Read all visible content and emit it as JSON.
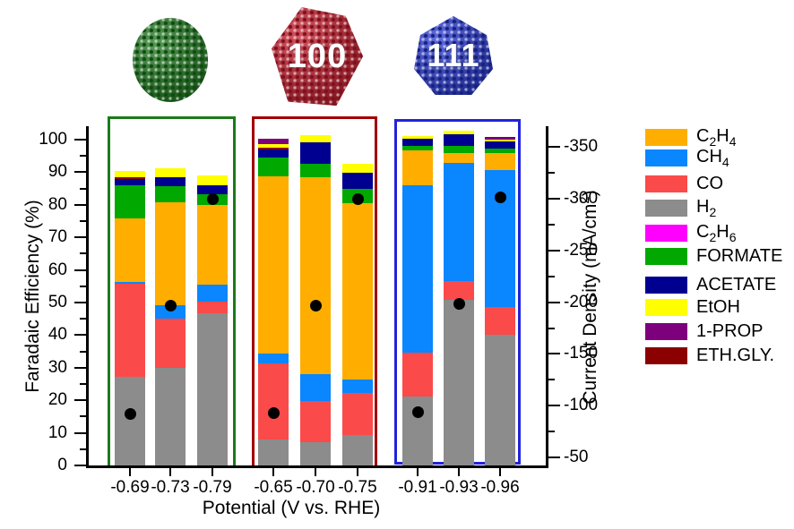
{
  "figure": {
    "particles": [
      {
        "name": "green-sphere-nanoparticle",
        "label": "",
        "base_color": "#217821",
        "dark_color": "#0c4d0c"
      },
      {
        "name": "red-cube-nanoparticle-100",
        "label": "100",
        "base_color": "#c31b2b",
        "dark_color": "#7e0f1b"
      },
      {
        "name": "blue-octahedron-nanoparticle-111",
        "label": "111",
        "base_color": "#2a3bd4",
        "dark_color": "#16217e"
      }
    ]
  },
  "chart_data": {
    "type": "bar",
    "stacked": true,
    "title": "",
    "xlabel": "Potential (V vs. RHE)",
    "ylabel_left": "Faradaic Efficiency (%)",
    "ylabel_right": "Current Density (mA/cm^2)",
    "left_axis": {
      "min": 0,
      "max": 100,
      "major_step": 10,
      "minor_step": 5
    },
    "right_axis": {
      "min": -350,
      "max": -50,
      "major_step": 50,
      "minor_step": 25
    },
    "grid": false,
    "legend_position": "right",
    "legend": [
      {
        "key": "C2H4",
        "label": "C_2H_4",
        "color": "#FFAE00"
      },
      {
        "key": "CH4",
        "label": "CH_4",
        "color": "#0A86FF"
      },
      {
        "key": "CO",
        "label": "CO",
        "color": "#FB4A4A"
      },
      {
        "key": "H2",
        "label": "H_2",
        "color": "#8C8C8C"
      },
      {
        "key": "C2H6",
        "label": "C_2H_6",
        "color": "#FF00FF"
      },
      {
        "key": "FORMATE",
        "label": "FORMATE",
        "color": "#00A800"
      },
      {
        "key": "ACETATE",
        "label": "ACETATE",
        "color": "#000090"
      },
      {
        "key": "EtOH",
        "label": "EtOH",
        "color": "#FFFF00"
      },
      {
        "key": "1-PROP",
        "label": "1-PROP",
        "color": "#7D007D"
      },
      {
        "key": "ETH.GLY",
        "label": "ETH.GLY.",
        "color": "#8B0000"
      }
    ],
    "groups": [
      {
        "name": "sphere",
        "box_color": "#1B7A1B",
        "bars": [
          {
            "x": "-0.69",
            "current_density": -92,
            "segments": [
              [
                "H2",
                27.5
              ],
              [
                "CO",
                28.5
              ],
              [
                "CH4",
                0.7
              ],
              [
                "C2H4",
                19.5
              ],
              [
                "FORMATE",
                10.2
              ],
              [
                "ACETATE",
                1.7
              ],
              [
                "ETH.GLY",
                0.6
              ],
              [
                "EtOH",
                2.0
              ]
            ]
          },
          {
            "x": "-0.73",
            "current_density": -197,
            "segments": [
              [
                "H2",
                30.2
              ],
              [
                "CO",
                15.1
              ],
              [
                "CH4",
                4.2
              ],
              [
                "C2H4",
                31.5
              ],
              [
                "FORMATE",
                5.1
              ],
              [
                "ACETATE",
                2.6
              ],
              [
                "EtOH",
                2.9
              ]
            ]
          },
          {
            "x": "-0.79",
            "current_density": -300,
            "segments": [
              [
                "H2",
                47.0
              ],
              [
                "CO",
                3.5
              ],
              [
                "CH4",
                5.4
              ],
              [
                "C2H4",
                24.2
              ],
              [
                "FORMATE",
                3.5
              ],
              [
                "ACETATE",
                2.7
              ],
              [
                "EtOH",
                3.0
              ]
            ]
          }
        ]
      },
      {
        "name": "100",
        "box_color": "#A00000",
        "bars": [
          {
            "x": "-0.65",
            "current_density": -93,
            "segments": [
              [
                "H2",
                8.2
              ],
              [
                "CO",
                23.4
              ],
              [
                "CH4",
                2.9
              ],
              [
                "C2H4",
                54.5
              ],
              [
                "FORMATE",
                5.8
              ],
              [
                "ACETATE",
                2.5
              ],
              [
                "ETH.GLY",
                0.5
              ],
              [
                "EtOH",
                1.1
              ],
              [
                "1-PROP",
                1.6
              ]
            ]
          },
          {
            "x": "-0.70",
            "current_density": -197,
            "segments": [
              [
                "H2",
                7.4
              ],
              [
                "CO",
                12.7
              ],
              [
                "CH4",
                8.3
              ],
              [
                "C2H4",
                60.4
              ],
              [
                "FORMATE",
                4.0
              ],
              [
                "ACETATE",
                6.6
              ],
              [
                "EtOH",
                2.2
              ]
            ]
          },
          {
            "x": "-0.75",
            "current_density": -300,
            "segments": [
              [
                "H2",
                9.6
              ],
              [
                "CO",
                12.8
              ],
              [
                "CH4",
                4.2
              ],
              [
                "C2H4",
                54.3
              ],
              [
                "FORMATE",
                4.3
              ],
              [
                "ACETATE",
                5.0
              ],
              [
                "EtOH",
                2.6
              ]
            ]
          }
        ]
      },
      {
        "name": "111",
        "box_color": "#2222DD",
        "bars": [
          {
            "x": "-0.91",
            "current_density": -94,
            "segments": [
              [
                "H2",
                21.5
              ],
              [
                "CO",
                13.3
              ],
              [
                "CH4",
                51.5
              ],
              [
                "C2H4",
                10.8
              ],
              [
                "FORMATE",
                1.3
              ],
              [
                "ACETATE",
                2.1
              ],
              [
                "EtOH",
                1.0
              ]
            ]
          },
          {
            "x": "-0.93",
            "current_density": -198,
            "segments": [
              [
                "H2",
                51.1
              ],
              [
                "CO",
                5.9
              ],
              [
                "CH4",
                36.2
              ],
              [
                "C2H4",
                3.0
              ],
              [
                "FORMATE",
                2.1
              ],
              [
                "ACETATE",
                3.6
              ],
              [
                "EtOH",
                1.1
              ]
            ]
          },
          {
            "x": "-0.96",
            "current_density": -301,
            "segments": [
              [
                "H2",
                40.3
              ],
              [
                "CO",
                8.7
              ],
              [
                "CH4",
                42.0
              ],
              [
                "C2H4",
                5.2
              ],
              [
                "FORMATE",
                1.3
              ],
              [
                "ACETATE",
                2.2
              ],
              [
                "EtOH",
                0.6
              ],
              [
                "1-PROP",
                0.4
              ],
              [
                "ETH.GLY",
                0.4
              ]
            ]
          }
        ]
      }
    ]
  }
}
